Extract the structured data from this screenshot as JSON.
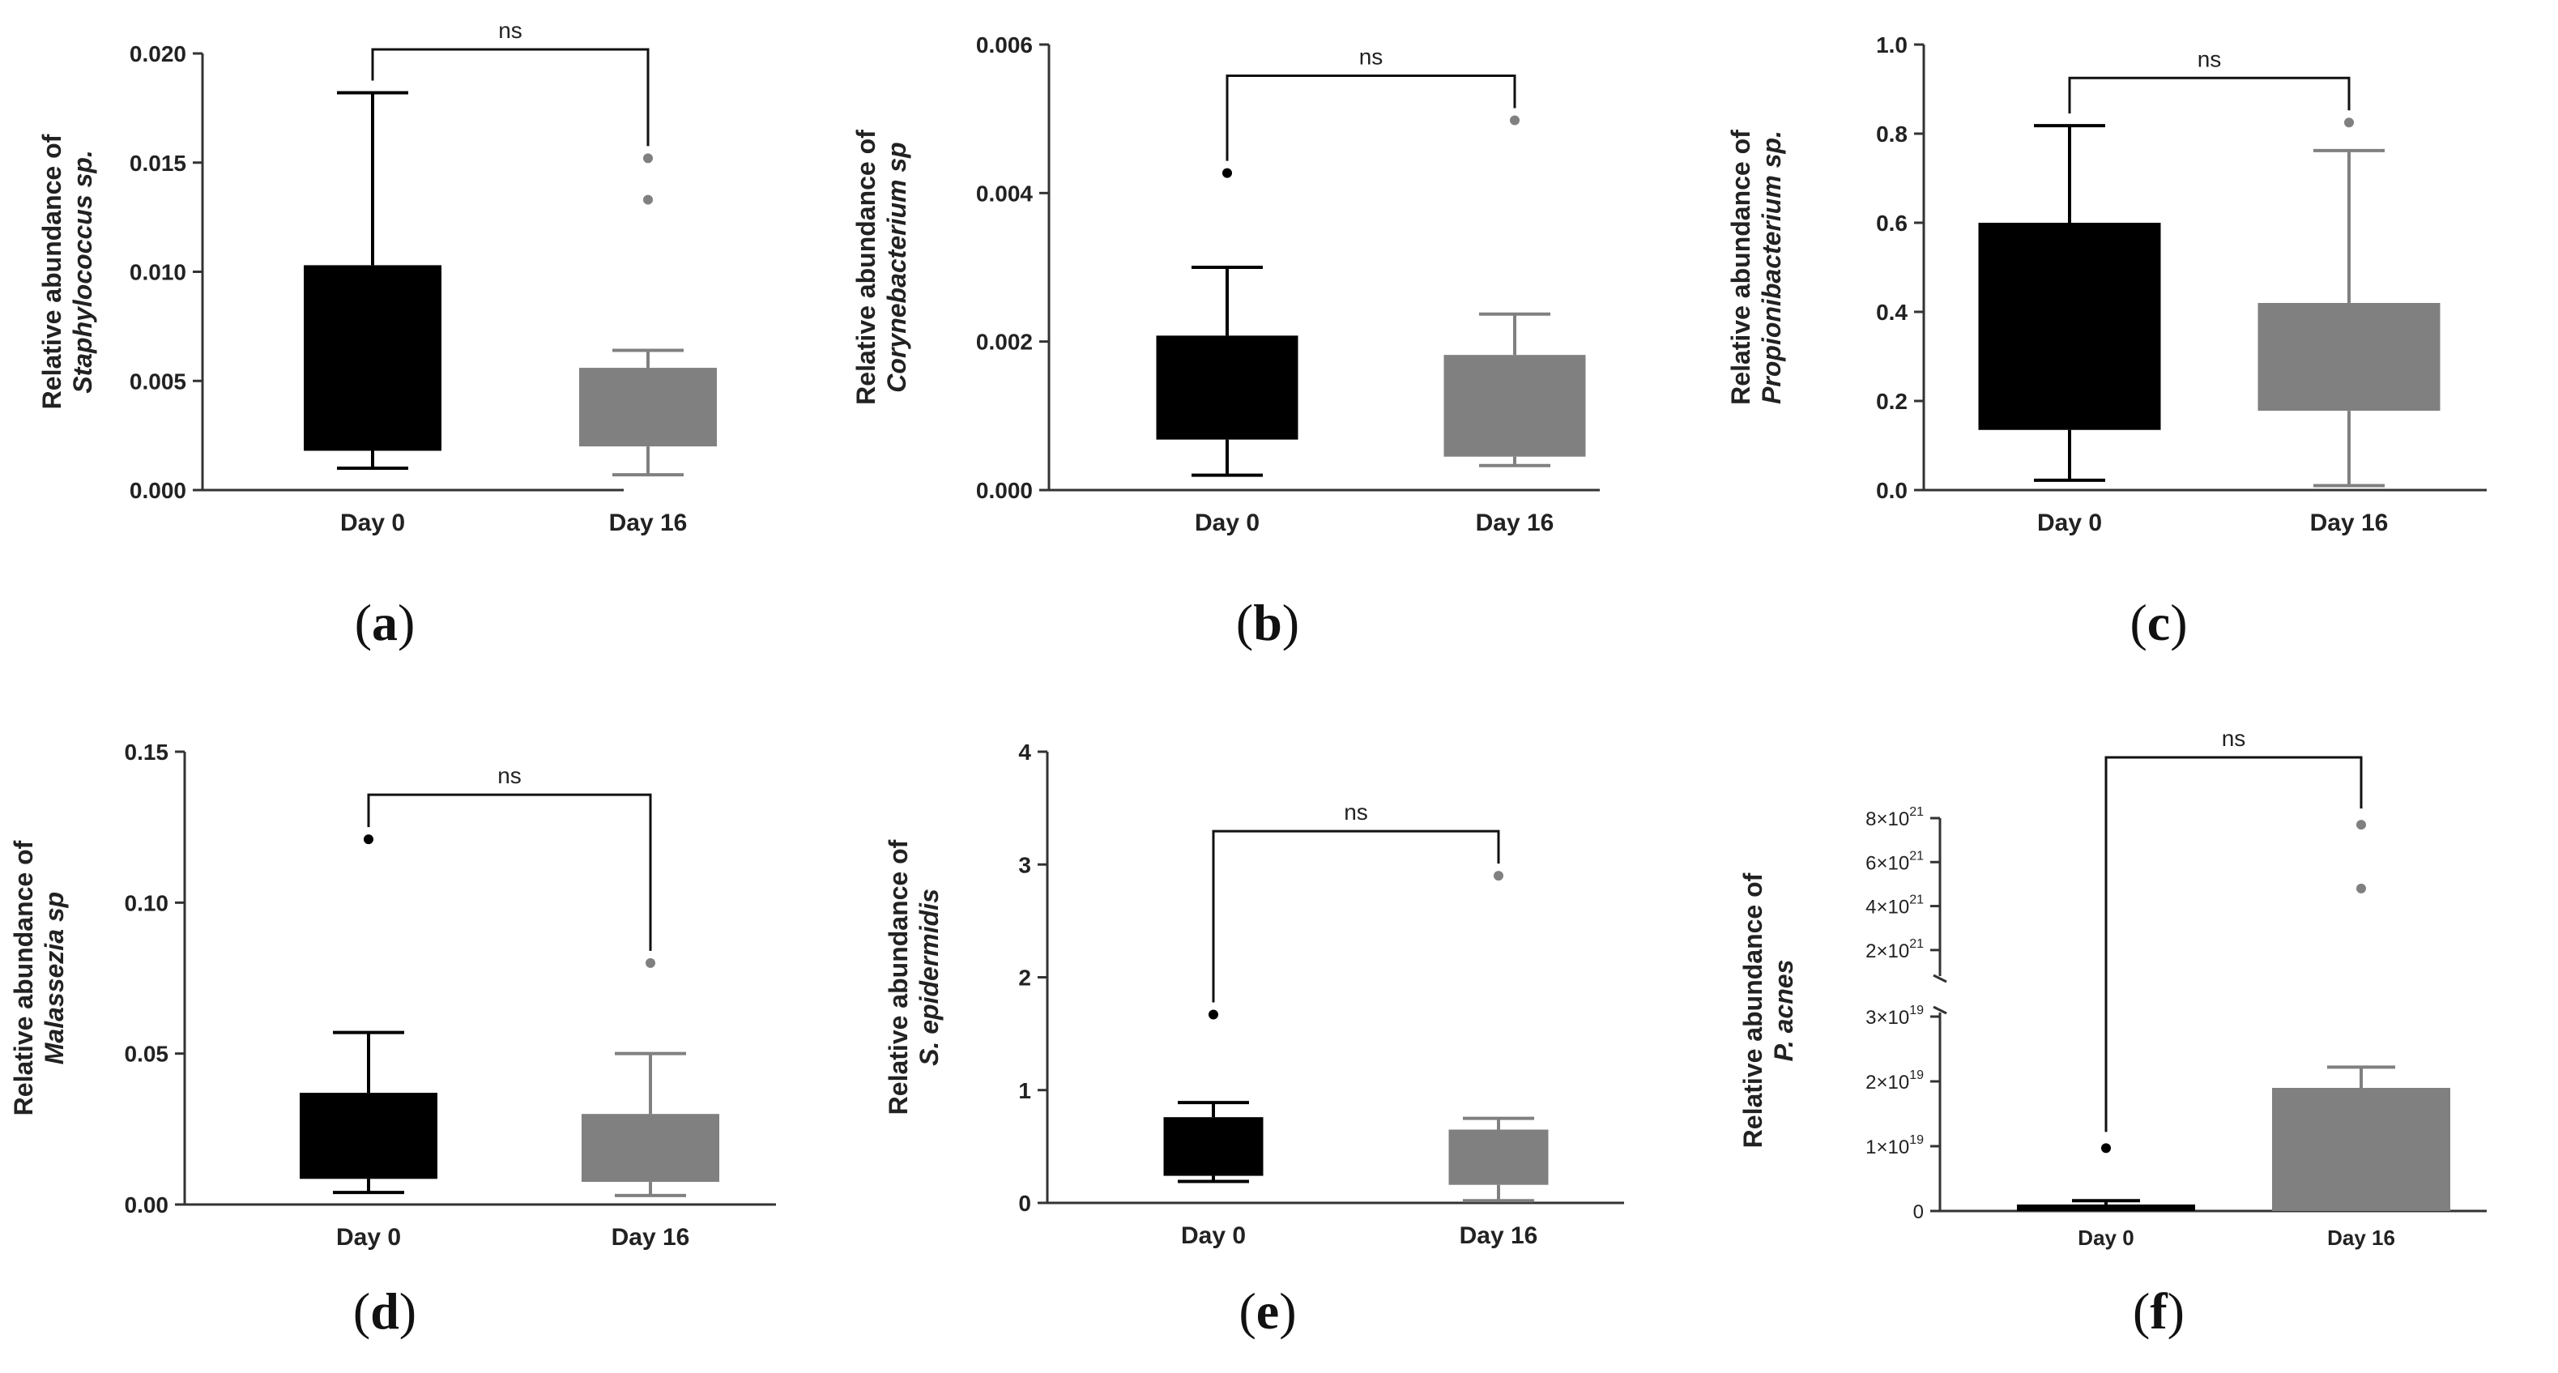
{
  "chart_data": [
    {
      "panel": "a",
      "type": "box",
      "ylabel_line1": "Relative abundance of",
      "ylabel_line2": "Staphylococcus sp.",
      "ylim": [
        0,
        0.02
      ],
      "yticks": [
        "0.000",
        "0.005",
        "0.010",
        "0.015",
        "0.020"
      ],
      "categories": [
        "Day 0",
        "Day 16"
      ],
      "boxes": [
        {
          "q1": 0.0018,
          "q3": 0.0103,
          "whisker_low": 0.001,
          "whisker_high": 0.0182,
          "outliers": [],
          "color": "#000000"
        },
        {
          "q1": 0.002,
          "q3": 0.0056,
          "whisker_low": 0.0007,
          "whisker_high": 0.0064,
          "outliers": [
            0.0133,
            0.0152
          ],
          "color": "#808080"
        }
      ],
      "significance": "ns"
    },
    {
      "panel": "b",
      "type": "box",
      "ylabel_line1": "Relative abundance of",
      "ylabel_line2": "Corynebacterium sp",
      "ylim": [
        0,
        0.006
      ],
      "yticks": [
        "0.000",
        "0.002",
        "0.004",
        "0.006"
      ],
      "categories": [
        "Day 0",
        "Day 16"
      ],
      "boxes": [
        {
          "q1": 0.00068,
          "q3": 0.00208,
          "whisker_low": 0.0002,
          "whisker_high": 0.003,
          "outliers": [
            0.00427
          ],
          "color": "#000000"
        },
        {
          "q1": 0.00045,
          "q3": 0.00182,
          "whisker_low": 0.00033,
          "whisker_high": 0.00237,
          "outliers": [
            0.00498
          ],
          "color": "#808080"
        }
      ],
      "significance": "ns"
    },
    {
      "panel": "c",
      "type": "box",
      "ylabel_line1": "Relative abundance of",
      "ylabel_line2": "Propionibacterium sp.",
      "ylim": [
        0,
        1.0
      ],
      "yticks": [
        "0.0",
        "0.2",
        "0.4",
        "0.6",
        "0.8",
        "1.0"
      ],
      "categories": [
        "Day 0",
        "Day 16"
      ],
      "boxes": [
        {
          "q1": 0.135,
          "q3": 0.6,
          "whisker_low": 0.022,
          "whisker_high": 0.818,
          "outliers": [],
          "color": "#000000"
        },
        {
          "q1": 0.178,
          "q3": 0.42,
          "whisker_low": 0.01,
          "whisker_high": 0.762,
          "outliers": [
            0.825
          ],
          "color": "#808080"
        }
      ],
      "significance": "ns"
    },
    {
      "panel": "d",
      "type": "box",
      "ylabel_line1": "Relative abundance of",
      "ylabel_line2": "Malassezia sp",
      "ylim": [
        0,
        0.15
      ],
      "yticks": [
        "0.00",
        "0.05",
        "0.10",
        "0.15"
      ],
      "categories": [
        "Day 0",
        "Day 16"
      ],
      "boxes": [
        {
          "q1": 0.0085,
          "q3": 0.037,
          "whisker_low": 0.004,
          "whisker_high": 0.057,
          "outliers": [
            0.121
          ],
          "color": "#000000"
        },
        {
          "q1": 0.0075,
          "q3": 0.03,
          "whisker_low": 0.003,
          "whisker_high": 0.05,
          "outliers": [
            0.08
          ],
          "color": "#808080"
        }
      ],
      "significance": "ns"
    },
    {
      "panel": "e",
      "type": "box",
      "ylabel_line1": "Relative abundance of",
      "ylabel_line2": "S. epidermidis",
      "ylim": [
        0,
        4
      ],
      "yticks": [
        "0",
        "1",
        "2",
        "3",
        "4"
      ],
      "categories": [
        "Day 0",
        "Day 16"
      ],
      "boxes": [
        {
          "q1": 0.24,
          "q3": 0.76,
          "whisker_low": 0.19,
          "whisker_high": 0.89,
          "outliers": [
            1.67
          ],
          "color": "#000000"
        },
        {
          "q1": 0.16,
          "q3": 0.65,
          "whisker_low": 0.02,
          "whisker_high": 0.75,
          "outliers": [
            2.9
          ],
          "color": "#808080"
        }
      ],
      "significance": "ns"
    },
    {
      "panel": "f",
      "type": "bar",
      "ylabel_line1": "Relative abundance of",
      "ylabel_line2": "P. acnes",
      "axis_break": true,
      "lower_segment_ylim": [
        0,
        3
      ],
      "upper_segment_ylim": [
        1,
        8
      ],
      "yticks_lower": [
        {
          "base": "0",
          "exp": ""
        },
        {
          "base": "1×10",
          "exp": "19"
        },
        {
          "base": "2×10",
          "exp": "19"
        },
        {
          "base": "3×10",
          "exp": "19"
        }
      ],
      "yticks_upper": [
        {
          "base": "2×10",
          "exp": "21"
        },
        {
          "base": "4×10",
          "exp": "21"
        },
        {
          "base": "6×10",
          "exp": "21"
        },
        {
          "base": "8×10",
          "exp": "21"
        }
      ],
      "categories": [
        "Day 0",
        "Day 16"
      ],
      "bars": [
        {
          "value": 0.1,
          "error_high": 0.16,
          "outliers_lower": [
            0.97
          ],
          "outliers_upper": [],
          "color": "#000000"
        },
        {
          "value": 1.9,
          "error_high": 2.22,
          "outliers_lower": [],
          "outliers_upper": [
            4.8,
            7.7
          ],
          "color": "#808080"
        }
      ],
      "significance": "ns"
    }
  ],
  "panel_labels": {
    "a": {
      "open": "(",
      "letter": "a",
      "close": ")"
    },
    "b": {
      "open": "(",
      "letter": "b",
      "close": ")"
    },
    "c": {
      "open": "(",
      "letter": "c",
      "close": ")"
    },
    "d": {
      "open": "(",
      "letter": "d",
      "close": ")"
    },
    "e": {
      "open": "(",
      "letter": "e",
      "close": ")"
    },
    "f": {
      "open": "(",
      "letter": "f",
      "close": ")"
    }
  }
}
